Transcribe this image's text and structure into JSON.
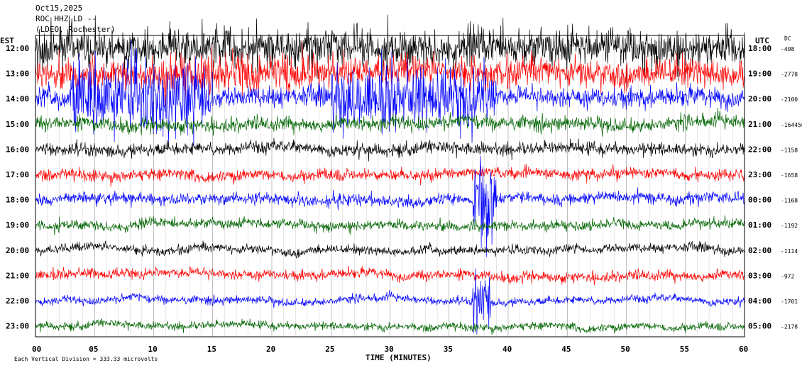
{
  "header": {
    "date": "Oct15,2025",
    "station": "ROC HHZ LD --",
    "network": "(LDEO, Rochester)"
  },
  "labels": {
    "left_zone": "EST",
    "right_zone": "UTC",
    "dc": "DC",
    "xlabel": "TIME (MINUTES)",
    "scale_note": "Each Vertical Division =  333.33 microvolts"
  },
  "colors": {
    "black": "#000000",
    "red": "#ff0000",
    "blue": "#0000ff",
    "green": "#006400",
    "grid": "#000000"
  },
  "chart_data": {
    "type": "line",
    "title": "Oct15,2025",
    "xlabel": "TIME (MINUTES)",
    "ylabel": "",
    "xlim": [
      0,
      60
    ],
    "x_ticks": [
      "00",
      "05",
      "10",
      "15",
      "20",
      "25",
      "30",
      "35",
      "40",
      "45",
      "50",
      "55",
      "60"
    ],
    "rows": [
      {
        "est": "12:00",
        "utc": "18:00",
        "dc": "-408",
        "color": "black",
        "amp": 2.8
      },
      {
        "est": "13:00",
        "utc": "19:00",
        "dc": "-2778",
        "color": "red",
        "amp": 2.3
      },
      {
        "est": "14:00",
        "utc": "20:00",
        "dc": "-2100",
        "color": "blue",
        "amp": 1.6
      },
      {
        "est": "15:00",
        "utc": "21:00",
        "dc": "-164456",
        "color": "green",
        "amp": 1.1
      },
      {
        "est": "16:00",
        "utc": "22:00",
        "dc": "-1158",
        "color": "black",
        "amp": 1.0
      },
      {
        "est": "17:00",
        "utc": "23:00",
        "dc": "-1658",
        "color": "red",
        "amp": 0.9
      },
      {
        "est": "18:00",
        "utc": "00:00",
        "dc": "-1168",
        "color": "blue",
        "amp": 0.9
      },
      {
        "est": "19:00",
        "utc": "01:00",
        "dc": "-1192",
        "color": "green",
        "amp": 0.8
      },
      {
        "est": "20:00",
        "utc": "02:00",
        "dc": "-1114",
        "color": "black",
        "amp": 0.7
      },
      {
        "est": "21:00",
        "utc": "03:00",
        "dc": "-972",
        "color": "red",
        "amp": 0.8
      },
      {
        "est": "22:00",
        "utc": "04:00",
        "dc": "-1701",
        "color": "blue",
        "amp": 0.6
      },
      {
        "est": "23:00",
        "utc": "05:00",
        "dc": "-2178",
        "color": "green",
        "amp": 0.6
      }
    ],
    "bursts": [
      {
        "row": 0,
        "x_start": 0,
        "x_end": 60,
        "amp": 3.0
      },
      {
        "row": 2,
        "x_start": 3,
        "x_end": 15,
        "amp": 6.0
      },
      {
        "row": 2,
        "x_start": 25,
        "x_end": 39,
        "amp": 5.0
      },
      {
        "row": 1,
        "x_start": 10,
        "x_end": 24,
        "amp": 3.5
      },
      {
        "row": 6,
        "x_start": 37,
        "x_end": 39,
        "amp": 8.0
      },
      {
        "row": 10,
        "x_start": 37,
        "x_end": 38.5,
        "amp": 5.0
      }
    ],
    "grid": true
  }
}
